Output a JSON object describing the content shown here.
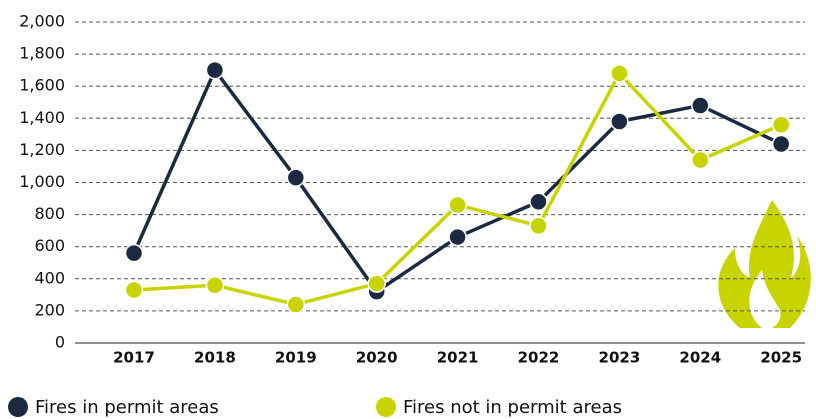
{
  "chart_data": {
    "type": "line",
    "categories": [
      "2017",
      "2018",
      "2019",
      "2020",
      "2021",
      "2022",
      "2023",
      "2024",
      "2025"
    ],
    "series": [
      {
        "name": "Fires in permit areas",
        "color": "#1b2a41",
        "values": [
          560,
          1700,
          1030,
          320,
          660,
          880,
          1380,
          1480,
          1240
        ]
      },
      {
        "name": "Fires not in permit areas",
        "color": "#c8d400",
        "values": [
          330,
          360,
          240,
          370,
          860,
          730,
          1680,
          1140,
          1360
        ]
      }
    ],
    "ylim": [
      0,
      2000
    ],
    "yticks": [
      0,
      200,
      400,
      600,
      800,
      {
        "value": 1000,
        "label": "1,000"
      },
      {
        "value": 1200,
        "label": "1,200"
      },
      {
        "value": 1400,
        "label": "1,400"
      },
      {
        "value": 1600,
        "label": "1,600"
      },
      {
        "value": 1800,
        "label": "1,800"
      },
      {
        "value": 2000,
        "label": "2,000"
      }
    ],
    "grid": true,
    "legend": "bottom"
  }
}
